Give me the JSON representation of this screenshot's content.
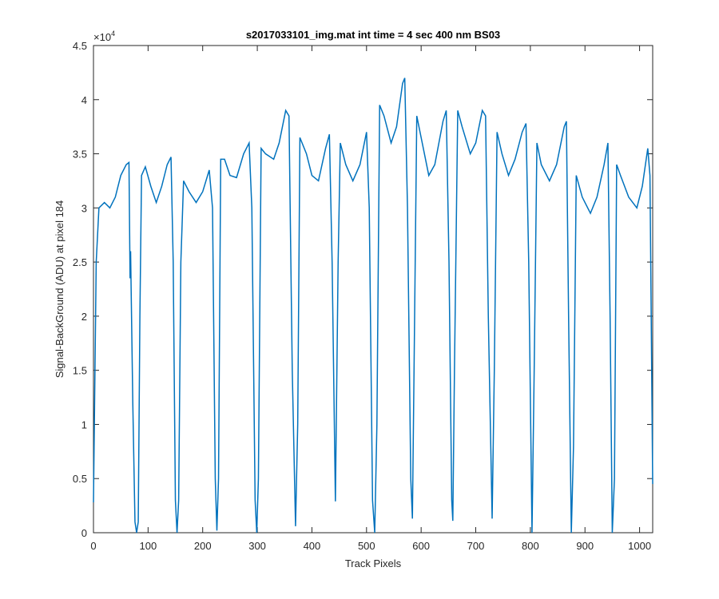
{
  "chart_data": {
    "type": "line",
    "title": "s2017033101_img.mat int time = 4 sec  400 nm BS03",
    "x_label": "Track Pixels",
    "y_label": "Signal-BackGround (ADU) at pixel 184",
    "y_scale_label": {
      "base": "×10",
      "exponent": "4"
    },
    "xlim": [
      0,
      1024
    ],
    "ylim": [
      0,
      45000
    ],
    "xticks": [
      0,
      100,
      200,
      300,
      400,
      500,
      600,
      700,
      800,
      900,
      1000
    ],
    "yticks": [
      0,
      {
        "value": 5000,
        "label": "0.5"
      },
      {
        "value": 10000,
        "label": "1"
      },
      {
        "value": 15000,
        "label": "1.5"
      },
      {
        "value": 20000,
        "label": "2"
      },
      {
        "value": 25000,
        "label": "2.5"
      },
      {
        "value": 30000,
        "label": "3"
      },
      {
        "value": 35000,
        "label": "3.5"
      },
      {
        "value": 40000,
        "label": "4"
      },
      {
        "value": 45000,
        "label": "4.5"
      }
    ],
    "grid": false,
    "series": [
      {
        "color": "#0072bd",
        "x": [
          0,
          5,
          10,
          20,
          30,
          40,
          50,
          60,
          65,
          67,
          68,
          72,
          76,
          79,
          82,
          85,
          88,
          95,
          105,
          115,
          125,
          135,
          142,
          146,
          150,
          153,
          156,
          160,
          165,
          175,
          188,
          200,
          212,
          218,
          223,
          226,
          229,
          233,
          240,
          250,
          262,
          275,
          285,
          290,
          296,
          299,
          302,
          307,
          315,
          330,
          340,
          352,
          358,
          364,
          370,
          374,
          378,
          390,
          400,
          412,
          425,
          432,
          437,
          443,
          448,
          452,
          462,
          475,
          488,
          500,
          505,
          511,
          515,
          519,
          524,
          532,
          545,
          555,
          566,
          570,
          575,
          581,
          584,
          587,
          592,
          600,
          614,
          625,
          640,
          646,
          651,
          656,
          658,
          661,
          667,
          675,
          690,
          700,
          712,
          718,
          723,
          730,
          734,
          739,
          748,
          760,
          772,
          785,
          792,
          797,
          803,
          807,
          812,
          820,
          835,
          848,
          862,
          866,
          870,
          875,
          879,
          884,
          895,
          910,
          922,
          935,
          942,
          946,
          950,
          954,
          958,
          965,
          980,
          995,
          1005,
          1015,
          1019,
          1024
        ],
        "values": [
          2800,
          25000,
          30000,
          30500,
          30000,
          31000,
          33000,
          34000,
          34200,
          23500,
          26000,
          12000,
          1000,
          0,
          1000,
          20000,
          33000,
          33800,
          32000,
          30500,
          32000,
          34000,
          34700,
          25000,
          3000,
          0,
          3000,
          25000,
          32500,
          31500,
          30500,
          31500,
          33500,
          30000,
          5000,
          200,
          5000,
          34500,
          34500,
          33000,
          32800,
          35000,
          36000,
          30000,
          3000,
          0,
          5000,
          35500,
          35000,
          34500,
          36000,
          39000,
          38500,
          15000,
          600,
          10000,
          36500,
          35000,
          33000,
          32500,
          35500,
          36800,
          25000,
          2900,
          25000,
          36000,
          34000,
          32500,
          34000,
          37000,
          30000,
          3000,
          0,
          10000,
          39500,
          38500,
          36000,
          37500,
          41500,
          42000,
          30000,
          5000,
          1300,
          15000,
          38500,
          36500,
          33000,
          34000,
          38000,
          39000,
          25000,
          3000,
          1100,
          15000,
          39000,
          37500,
          35000,
          36000,
          39000,
          38500,
          20000,
          1300,
          15000,
          37000,
          35000,
          33000,
          34500,
          37000,
          37800,
          25000,
          0,
          15000,
          36000,
          34000,
          32500,
          34000,
          37500,
          38000,
          20000,
          0,
          8000,
          33000,
          31000,
          29500,
          31000,
          34000,
          36000,
          20000,
          0,
          5000,
          34000,
          33000,
          31000,
          30000,
          32000,
          35500,
          33000,
          4500
        ]
      }
    ]
  }
}
